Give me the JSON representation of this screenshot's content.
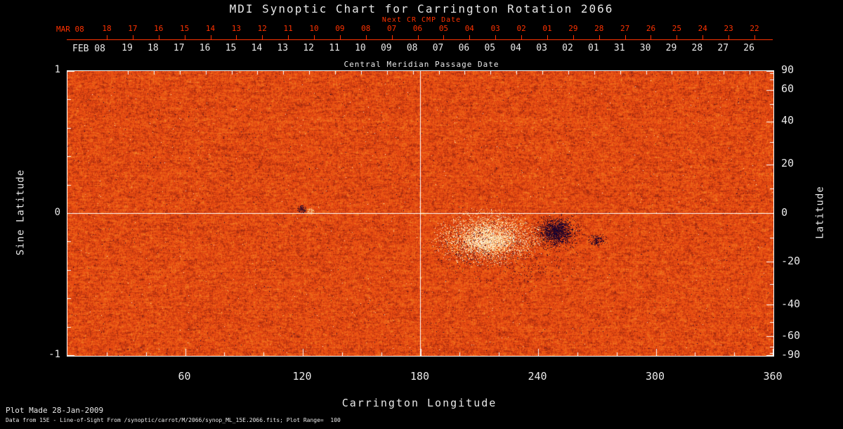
{
  "title": "MDI Synoptic Chart for Carrington Rotation 2066",
  "top_axis": {
    "next_cr_label": "Next CR CMP Date",
    "next_cr_month": "MAR 08",
    "next_cr_dates": [
      "18",
      "17",
      "16",
      "15",
      "14",
      "13",
      "12",
      "11",
      "10",
      "09",
      "08",
      "07",
      "06",
      "05",
      "04",
      "03",
      "02",
      "01",
      "29",
      "28",
      "27",
      "26",
      "25",
      "24",
      "23",
      "22"
    ],
    "cmp_month": "FEB 08",
    "cmp_dates": [
      "19",
      "18",
      "17",
      "16",
      "15",
      "14",
      "13",
      "12",
      "11",
      "10",
      "09",
      "08",
      "07",
      "06",
      "05",
      "04",
      "03",
      "02",
      "01",
      "31",
      "30",
      "29",
      "28",
      "27",
      "26"
    ],
    "axis_label": "Central Meridian Passage Date"
  },
  "x_axis": {
    "label": "Carrington Longitude",
    "tick_labels": [
      "60",
      "120",
      "180",
      "240",
      "300",
      "360"
    ]
  },
  "y_axis_left": {
    "label": "Sine Latitude",
    "tick_labels": [
      "1",
      "0",
      "-1"
    ]
  },
  "y_axis_right": {
    "label": "Latitude",
    "tick_labels": [
      "90",
      "60",
      "40",
      "20",
      "0",
      "-20",
      "-40",
      "-60",
      "-90"
    ]
  },
  "footer": {
    "line1": "Plot Made 28-Jan-2009",
    "line2": "Data from 15E - Line-of-Sight From /synoptic/carrot/M/2066/synop_ML_15E.2066.fits; Plot Range=  100"
  },
  "colors": {
    "background": "#000000",
    "axis_text": "#e9e9e9",
    "next_cr_red": "#ff3200",
    "map_neutral": "#e84812",
    "map_positive": "#ffffff",
    "map_negative": "#000446",
    "crosshair": "#ffffff"
  },
  "chart_data": {
    "type": "heatmap",
    "title": "MDI Synoptic Chart for Carrington Rotation 2066",
    "xlabel": "Carrington Longitude",
    "ylabel_left": "Sine Latitude",
    "ylabel_right": "Latitude",
    "top_axis_label": "Central Meridian Passage Date",
    "xlim": [
      0,
      360
    ],
    "ylim_sine_latitude": [
      -1,
      1
    ],
    "x_ticks": [
      60,
      120,
      180,
      240,
      300,
      360
    ],
    "y_left_ticks": [
      1,
      0,
      -1
    ],
    "y_right_ticks": [
      90,
      60,
      40,
      20,
      0,
      -20,
      -40,
      -60,
      -90
    ],
    "y_right_minor_ticks": [
      80,
      70,
      50,
      30,
      10,
      -10,
      -30,
      -50,
      -70,
      -80
    ],
    "plot_range_gauss": 100,
    "colormap": "line-of-sight magnetic field: neutral ~0 G rendered orange-red mottle, positive flux toward yellow/white, negative flux toward dark red/black-navy",
    "crosshair": {
      "carrington_longitude": 180,
      "sine_latitude": 0
    },
    "cmp_dates_feb_2008": [
      "19",
      "18",
      "17",
      "16",
      "15",
      "14",
      "13",
      "12",
      "11",
      "10",
      "09",
      "08",
      "07",
      "06",
      "05",
      "04",
      "03",
      "02",
      "01",
      "31",
      "30",
      "29",
      "28",
      "27",
      "26"
    ],
    "next_cr_cmp_dates_mar_2008": [
      "18",
      "17",
      "16",
      "15",
      "14",
      "13",
      "12",
      "11",
      "10",
      "09",
      "08",
      "07",
      "06",
      "05",
      "04",
      "03",
      "02",
      "01",
      "29",
      "28",
      "27",
      "26",
      "25",
      "24",
      "23",
      "22"
    ],
    "features": [
      {
        "name": "active-region-plage",
        "carrington_longitude": 216,
        "sine_latitude": -0.17,
        "polarity": "positive",
        "appearance": "bright white-yellow scattered plage"
      },
      {
        "name": "active-region-spot",
        "carrington_longitude": 249,
        "sine_latitude": -0.13,
        "polarity": "negative",
        "appearance": "compact dark blue-black spot"
      },
      {
        "name": "trailing-negative-speckle",
        "carrington_longitude": 229,
        "sine_latitude": -0.29,
        "polarity": "negative",
        "appearance": "scattered dark specks around active region"
      },
      {
        "name": "small-bipole",
        "carrington_longitude": 119,
        "sine_latitude": 0.03,
        "polarity": "mixed",
        "appearance": "small dark/bright pair near equator"
      }
    ]
  }
}
